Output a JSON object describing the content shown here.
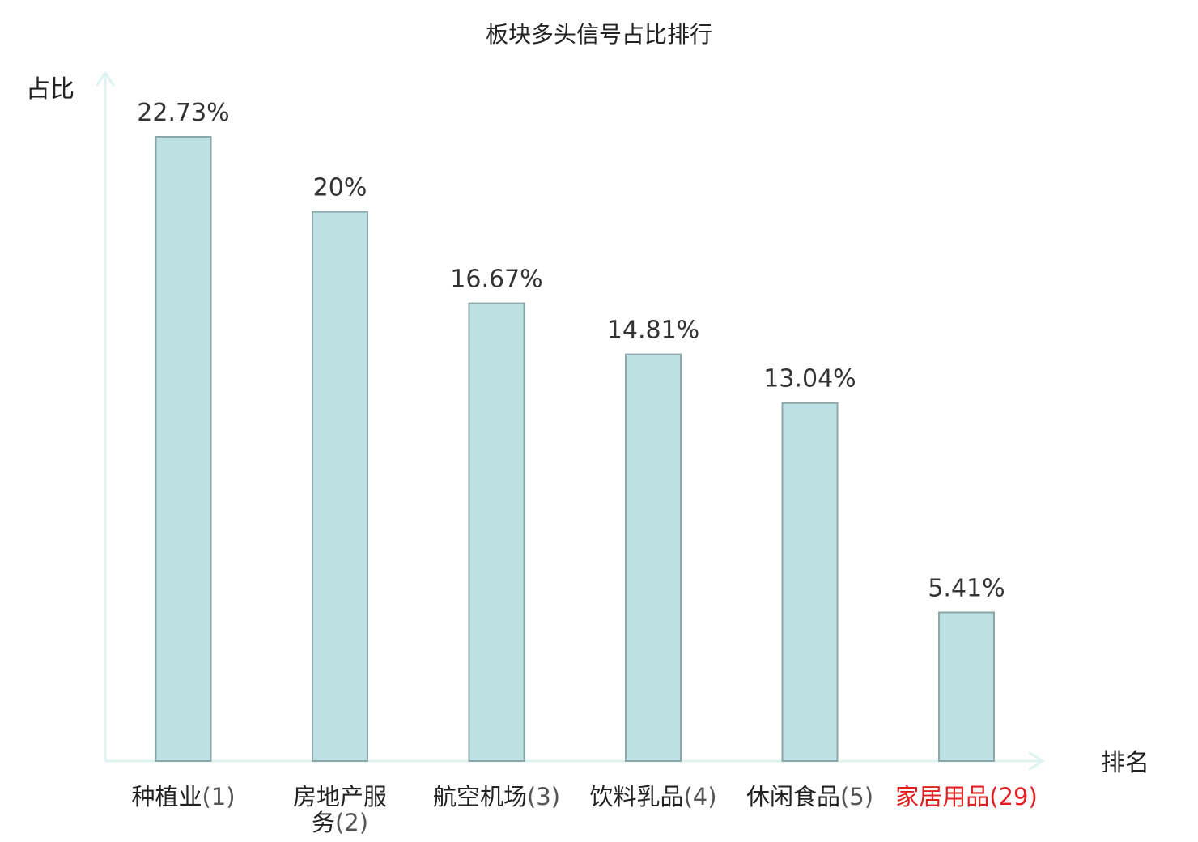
{
  "chart_data": {
    "type": "bar",
    "title": "板块多头信号占比排行",
    "ylabel": "占比",
    "xlabel": "排名",
    "value_suffix": "%",
    "categories": [
      {
        "name": "种植业",
        "rank": "(1)",
        "value_label": "22.73%"
      },
      {
        "name": "房地产服务",
        "rank": "(2)",
        "value_label": "20%"
      },
      {
        "name": "航空机场",
        "rank": "(3)",
        "value_label": "16.67%"
      },
      {
        "name": "饮料乳品",
        "rank": "(4)",
        "value_label": "14.81%"
      },
      {
        "name": "休闲食品",
        "rank": "(5)",
        "value_label": "13.04%"
      },
      {
        "name": "家居用品",
        "rank": "(29)",
        "value_label": "5.41%"
      }
    ],
    "values": [
      22.73,
      20,
      16.67,
      14.81,
      13.04,
      5.41
    ],
    "highlight_index": 5,
    "ylim": [
      0,
      25
    ],
    "grid": false,
    "bar_color": "#bde0e2",
    "bar_edge_color": "#8aa8aa",
    "axis_color": "#dff3f0",
    "highlight_color": "#e02020"
  }
}
